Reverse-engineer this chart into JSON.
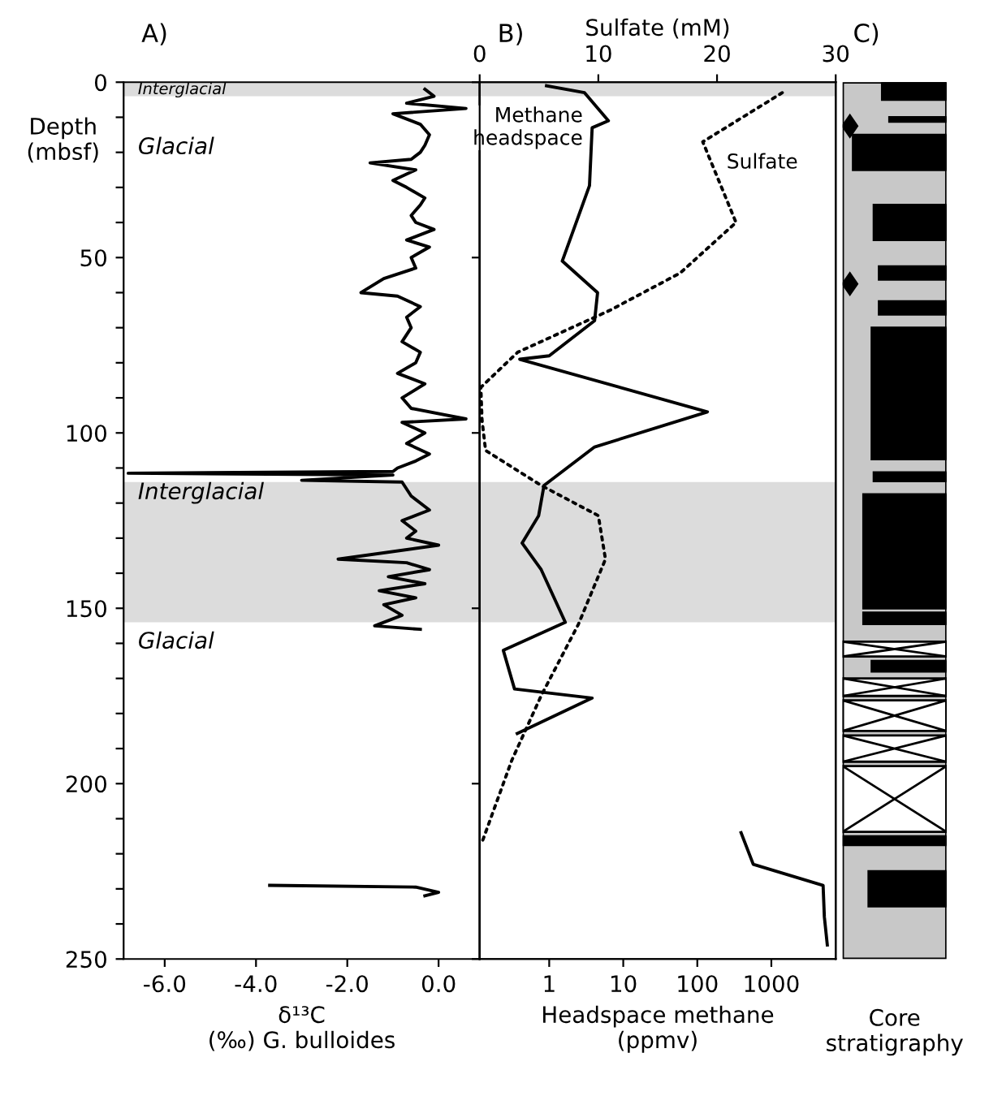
{
  "chart_data": [
    {
      "type": "line",
      "title": "A)",
      "xlabel": "δ¹³C\n(‰) G. bulloides",
      "ylabel": "Depth\n(mbsf)",
      "xlim": [
        -6.9,
        0.9
      ],
      "xticks": [
        {
          "value": -6,
          "label": "-6.0"
        },
        {
          "value": -4,
          "label": "-4.0"
        },
        {
          "value": -2,
          "label": "-2.0"
        },
        {
          "value": 0,
          "label": "0.0"
        }
      ],
      "ylim": [
        250,
        0
      ],
      "yticks": [
        0,
        {
          "value": 10,
          "label": null
        },
        {
          "value": 20,
          "label": null
        },
        {
          "value": 30,
          "label": null
        },
        {
          "value": 40,
          "label": null
        },
        50,
        {
          "value": 60,
          "label": null
        },
        {
          "value": 70,
          "label": null
        },
        {
          "value": 80,
          "label": null
        },
        {
          "value": 90,
          "label": null
        },
        100,
        {
          "value": 110,
          "label": null
        },
        {
          "value": 120,
          "label": null
        },
        {
          "value": 130,
          "label": null
        },
        {
          "value": 140,
          "label": null
        },
        150,
        {
          "value": 160,
          "label": null
        },
        {
          "value": 170,
          "label": null
        },
        {
          "value": 180,
          "label": null
        },
        {
          "value": 190,
          "label": null
        },
        200,
        {
          "value": 210,
          "label": null
        },
        {
          "value": 220,
          "label": null
        },
        {
          "value": 230,
          "label": null
        },
        {
          "value": 240,
          "label": null
        },
        250
      ],
      "grid": false,
      "marker": "none",
      "bands": [
        {
          "axis": "y",
          "from": 0,
          "to": 4,
          "label": "Interglacial",
          "color": "#dcdcdc"
        },
        {
          "axis": "y",
          "from": 114,
          "to": 154,
          "label": "Interglacial",
          "color": "#dcdcdc"
        }
      ],
      "annotations": [
        "Glacial",
        "Glacial"
      ],
      "series": [
        {
          "color": "#000000",
          "line_style": "solid",
          "x": [
            -0.3,
            -0.1,
            -0.7,
            0.6,
            -1.0,
            -0.4,
            -0.2,
            -0.3,
            -0.4,
            -0.6,
            -1.5,
            -0.5,
            -1.0,
            -0.7,
            -0.3,
            -0.4,
            -0.6,
            -0.5,
            -0.1,
            -0.7,
            -0.2,
            -0.6,
            -0.5,
            -1.2,
            -1.7,
            -0.9,
            -0.4,
            -0.7,
            -0.6,
            -0.8,
            -0.4,
            -0.5,
            -0.9,
            -0.3,
            -0.8,
            -0.6,
            0.6,
            -0.8,
            -0.3,
            -0.7,
            -0.2,
            -0.5,
            -0.9,
            -1.0,
            -6.8,
            -1.0,
            -3.0,
            -0.8,
            -0.6,
            -0.2,
            -0.8,
            -0.5,
            -0.7,
            0.0,
            -2.2,
            -0.7,
            -0.2,
            -1.1,
            -0.3,
            -1.3,
            -0.5,
            -1.2,
            -0.8,
            -1.4,
            -0.4,
            null,
            -3.7,
            -0.5,
            0.0,
            -0.3
          ],
          "values": [
            2,
            4,
            6,
            7.5,
            9,
            12,
            15,
            18,
            20,
            22,
            23,
            25,
            28,
            30,
            33,
            35,
            38,
            40,
            42,
            45,
            47,
            50,
            53,
            56,
            60,
            61,
            64,
            67,
            70,
            74,
            77,
            80,
            83,
            86,
            90,
            93,
            96,
            97,
            100,
            103,
            106,
            108,
            110,
            111,
            111.5,
            112,
            113.5,
            114,
            118,
            122,
            125,
            128,
            130,
            132,
            136,
            137,
            139,
            141,
            143,
            145,
            147,
            149,
            152,
            155,
            156,
            null,
            229,
            229.5,
            231,
            232
          ]
        }
      ]
    },
    {
      "type": "line",
      "xlabel": "Headspace methane\n(ppmv)",
      "x2label": "Sulfate (mM)",
      "title": "B)",
      "log": "x",
      "xlim": [
        0.115,
        7400
      ],
      "xticks": [
        1,
        10,
        100,
        1000
      ],
      "x2lim": [
        0,
        30
      ],
      "x2ticks": [
        0,
        10,
        20,
        30
      ],
      "ylim": [
        250,
        0
      ],
      "yticks": [
        0,
        50,
        100,
        150,
        200,
        250
      ],
      "tick_labels": "x",
      "grid": false,
      "marker": "none",
      "bands": [
        {
          "axis": "y",
          "from": 0,
          "to": 4,
          "color": "#dcdcdc"
        },
        {
          "axis": "y",
          "from": 114,
          "to": 154,
          "color": "#dcdcdc"
        }
      ],
      "series": [
        {
          "name": "Methane\nheadspace",
          "color": "#000000",
          "line_style": "solid",
          "x": [
            0.92,
            3.0,
            6.3,
            3.8,
            3.5,
            1.5,
            4.5,
            4.1,
            1.0,
            0.4,
            137,
            4.1,
            0.85,
            0.72,
            0.43,
            0.78,
            1.65,
            0.24,
            0.34,
            3.8,
            0.37,
            null,
            390,
            570,
            5000,
            5200,
            5700
          ],
          "values": [
            1,
            3,
            11,
            13,
            29.5,
            51,
            60,
            68,
            78,
            79,
            94,
            104,
            115,
            123.6,
            131.4,
            139,
            154,
            162,
            173,
            175.6,
            185.7,
            null,
            214,
            223,
            229,
            238,
            246
          ]
        },
        {
          "name": "Sulfate",
          "color": "#000000",
          "line_style": "dotted",
          "axis": "x2",
          "x": [
            25.5,
            18.8,
            21.6,
            16.9,
            11,
            3.2,
            0.1,
            0.2,
            0.5,
            5.2,
            10,
            10.6,
            8.3,
            5.2,
            2.7,
            0.2
          ],
          "values": [
            3,
            17,
            40,
            54.4,
            65,
            77,
            87,
            96.4,
            105,
            115,
            123.6,
            136,
            154.7,
            174.8,
            193.4,
            216.7
          ]
        }
      ]
    },
    {
      "type": "other",
      "title": "C)",
      "xlabel": "Core\nstratigraphy"
    }
  ]
}
